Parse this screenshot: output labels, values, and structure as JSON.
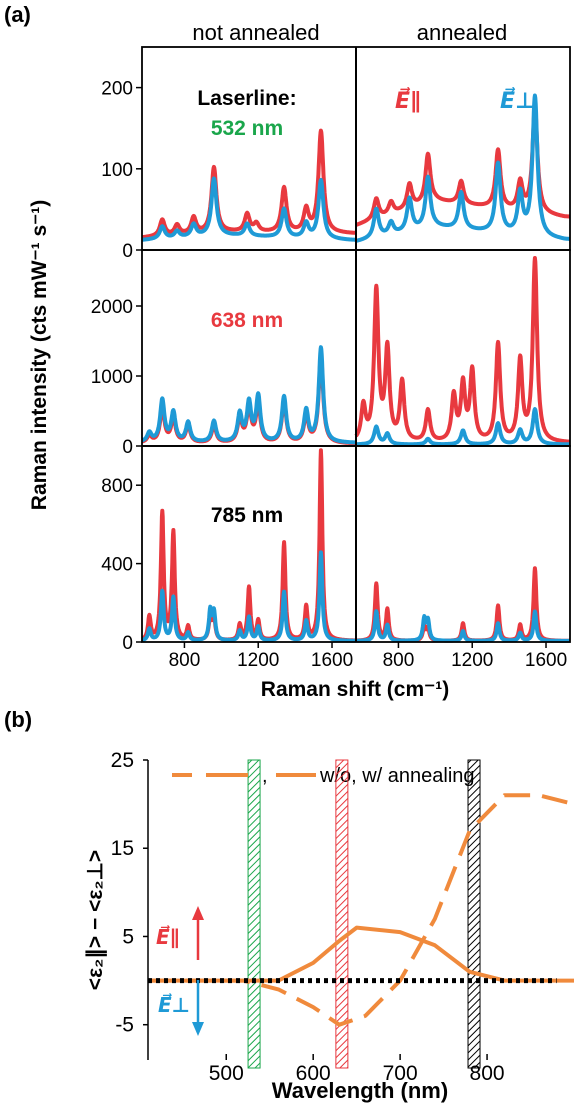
{
  "colors": {
    "parallel": "#e8393f",
    "perp": "#1f9ad6",
    "green": "#1aa64b",
    "black": "#000000",
    "orange": "#f08a3c"
  },
  "panel_a": {
    "label": "(a)",
    "col_titles": [
      "not annealed",
      "annealed"
    ],
    "ylabel": "Raman intensity (cts mW⁻¹ s⁻¹)",
    "xlabel": "Raman shift (cm⁻¹)",
    "laserline_label": "Laserline:",
    "e_par_label": "E⃗∥",
    "e_perp_label": "E⃗⊥"
  },
  "panel_b": {
    "label": "(b)",
    "ylabel": "<ε₂∥> − <ε₂⊥>",
    "xlabel": "Wavelength (nm)",
    "legend_sep": ",",
    "legend_text": "w/o, w/ annealing",
    "e_par_label": "E⃗∥",
    "e_perp_label": "E⃗⊥"
  },
  "chart_data": [
    {
      "type": "line",
      "panel": "a-532",
      "label": "532 nm",
      "xlim": [
        570,
        1730
      ],
      "ylim": [
        0,
        250
      ],
      "yticks": [
        0,
        100,
        200
      ],
      "xticks": [
        800,
        1200,
        1600
      ],
      "x_tick_labels": [
        "800",
        "1200",
        "1600"
      ],
      "peak_width": 16,
      "not_annealed": {
        "parallel": {
          "baseline": [
            [
              570,
              15
            ],
            [
              1000,
              22
            ],
            [
              1700,
              20
            ]
          ],
          "peaks": [
            [
              680,
              20
            ],
            [
              760,
              12
            ],
            [
              850,
              20
            ],
            [
              960,
              80
            ],
            [
              1140,
              22
            ],
            [
              1190,
              10
            ],
            [
              1340,
              55
            ],
            [
              1460,
              28
            ],
            [
              1540,
              125
            ]
          ]
        },
        "perp": {
          "baseline": [
            [
              570,
              12
            ],
            [
              1000,
              18
            ],
            [
              1700,
              12
            ]
          ],
          "peaks": [
            [
              680,
              15
            ],
            [
              760,
              8
            ],
            [
              850,
              15
            ],
            [
              960,
              70
            ],
            [
              1140,
              15
            ],
            [
              1340,
              35
            ],
            [
              1460,
              18
            ],
            [
              1540,
              72
            ]
          ]
        }
      },
      "annealed": {
        "parallel": {
          "baseline": [
            [
              570,
              30
            ],
            [
              1000,
              60
            ],
            [
              1700,
              40
            ]
          ],
          "peaks": [
            [
              680,
              25
            ],
            [
              760,
              15
            ],
            [
              860,
              30
            ],
            [
              960,
              60
            ],
            [
              1140,
              28
            ],
            [
              1340,
              72
            ],
            [
              1460,
              35
            ],
            [
              1540,
              130
            ]
          ]
        },
        "perp": {
          "baseline": [
            [
              570,
              10
            ],
            [
              1000,
              28
            ],
            [
              1700,
              12
            ]
          ],
          "peaks": [
            [
              680,
              35
            ],
            [
              760,
              15
            ],
            [
              860,
              40
            ],
            [
              960,
              62
            ],
            [
              1140,
              45
            ],
            [
              1340,
              85
            ],
            [
              1460,
              50
            ],
            [
              1540,
              172
            ]
          ]
        }
      }
    },
    {
      "type": "line",
      "panel": "a-638",
      "label": "638 nm",
      "xlim": [
        570,
        1730
      ],
      "ylim": [
        0,
        2800
      ],
      "yticks": [
        0,
        1000,
        2000
      ],
      "xticks": [
        800,
        1200,
        1600
      ],
      "x_tick_labels": [
        "800",
        "1200",
        "1600"
      ],
      "peak_width": 14,
      "not_annealed": {
        "parallel": {
          "baseline": [
            [
              570,
              40
            ],
            [
              1700,
              30
            ]
          ],
          "peaks": [
            [
              610,
              100
            ],
            [
              680,
              500
            ],
            [
              740,
              350
            ],
            [
              820,
              250
            ],
            [
              960,
              250
            ],
            [
              1100,
              350
            ],
            [
              1150,
              500
            ],
            [
              1200,
              550
            ],
            [
              1340,
              600
            ],
            [
              1460,
              400
            ],
            [
              1540,
              1250
            ]
          ]
        },
        "perp": {
          "baseline": [
            [
              570,
              50
            ],
            [
              1700,
              40
            ]
          ],
          "peaks": [
            [
              610,
              130
            ],
            [
              680,
              600
            ],
            [
              740,
              420
            ],
            [
              820,
              280
            ],
            [
              960,
              300
            ],
            [
              1100,
              400
            ],
            [
              1150,
              550
            ],
            [
              1200,
              650
            ],
            [
              1340,
              650
            ],
            [
              1460,
              450
            ],
            [
              1540,
              1350
            ]
          ]
        }
      },
      "annealed": {
        "parallel": {
          "baseline": [
            [
              570,
              40
            ],
            [
              1700,
              40
            ]
          ],
          "peaks": [
            [
              610,
              500
            ],
            [
              680,
              2150
            ],
            [
              740,
              1300
            ],
            [
              820,
              850
            ],
            [
              960,
              450
            ],
            [
              1100,
              650
            ],
            [
              1150,
              800
            ],
            [
              1200,
              1000
            ],
            [
              1340,
              1400
            ],
            [
              1460,
              1150
            ],
            [
              1540,
              2600
            ]
          ]
        },
        "perp": {
          "baseline": [
            [
              570,
              20
            ],
            [
              1700,
              20
            ]
          ],
          "peaks": [
            [
              680,
              250
            ],
            [
              740,
              150
            ],
            [
              960,
              80
            ],
            [
              1150,
              200
            ],
            [
              1340,
              300
            ],
            [
              1460,
              200
            ],
            [
              1540,
              500
            ]
          ]
        }
      }
    },
    {
      "type": "line",
      "panel": "a-785",
      "label": "785 nm",
      "xlim": [
        570,
        1730
      ],
      "ylim": [
        0,
        1000
      ],
      "yticks": [
        0,
        400,
        800
      ],
      "xticks": [
        800,
        1200,
        1600
      ],
      "x_tick_labels": [
        "800",
        "1200",
        "1600"
      ],
      "peak_width": 9,
      "not_annealed": {
        "parallel": {
          "baseline": [
            [
              570,
              5
            ],
            [
              1700,
              5
            ]
          ],
          "peaks": [
            [
              610,
              120
            ],
            [
              680,
              650
            ],
            [
              740,
              550
            ],
            [
              820,
              70
            ],
            [
              940,
              120
            ],
            [
              960,
              110
            ],
            [
              1100,
              80
            ],
            [
              1150,
              270
            ],
            [
              1200,
              100
            ],
            [
              1340,
              500
            ],
            [
              1460,
              170
            ],
            [
              1540,
              970
            ]
          ]
        },
        "perp": {
          "baseline": [
            [
              570,
              5
            ],
            [
              1700,
              5
            ]
          ],
          "peaks": [
            [
              610,
              60
            ],
            [
              680,
              250
            ],
            [
              740,
              220
            ],
            [
              820,
              40
            ],
            [
              940,
              150
            ],
            [
              960,
              140
            ],
            [
              1100,
              50
            ],
            [
              1150,
              120
            ],
            [
              1200,
              70
            ],
            [
              1340,
              250
            ],
            [
              1460,
              100
            ],
            [
              1540,
              450
            ]
          ]
        }
      },
      "annealed": {
        "parallel": {
          "baseline": [
            [
              570,
              5
            ],
            [
              1700,
              5
            ]
          ],
          "peaks": [
            [
              680,
              290
            ],
            [
              740,
              160
            ],
            [
              940,
              70
            ],
            [
              960,
              60
            ],
            [
              1150,
              90
            ],
            [
              1340,
              180
            ],
            [
              1460,
              80
            ],
            [
              1540,
              370
            ]
          ]
        },
        "perp": {
          "baseline": [
            [
              570,
              5
            ],
            [
              1700,
              5
            ]
          ],
          "peaks": [
            [
              680,
              150
            ],
            [
              740,
              80
            ],
            [
              940,
              110
            ],
            [
              960,
              100
            ],
            [
              1150,
              50
            ],
            [
              1340,
              90
            ],
            [
              1460,
              40
            ],
            [
              1540,
              150
            ]
          ]
        }
      }
    },
    {
      "type": "line",
      "panel": "b",
      "xlim": [
        410,
        900
      ],
      "ylim": [
        -9,
        25
      ],
      "yticks": [
        -5,
        5,
        15,
        25
      ],
      "xticks": [
        500,
        600,
        700,
        800
      ],
      "x_tick_labels": [
        "500",
        "600",
        "700",
        "800"
      ],
      "series": [
        {
          "name": "w/o",
          "style": "dashed",
          "x": [
            410,
            520,
            560,
            600,
            630,
            660,
            700,
            740,
            780,
            820,
            860,
            900
          ],
          "y": [
            0,
            0,
            -1,
            -3,
            -5,
            -4,
            0,
            7,
            17,
            21,
            21,
            20
          ]
        },
        {
          "name": "w/",
          "style": "solid",
          "x": [
            410,
            500,
            560,
            600,
            630,
            650,
            700,
            740,
            780,
            820,
            860,
            900
          ],
          "y": [
            0,
            0,
            0,
            2,
            4.5,
            6,
            5.5,
            4,
            1,
            0,
            0,
            0
          ]
        },
        {
          "name": "zero",
          "style": "dotted",
          "x": [
            410,
            880
          ],
          "y": [
            0,
            0
          ]
        }
      ],
      "bands": [
        {
          "x": 532,
          "color": "green"
        },
        {
          "x": 633,
          "color": "parallel"
        },
        {
          "x": 785,
          "color": "black"
        }
      ]
    }
  ]
}
